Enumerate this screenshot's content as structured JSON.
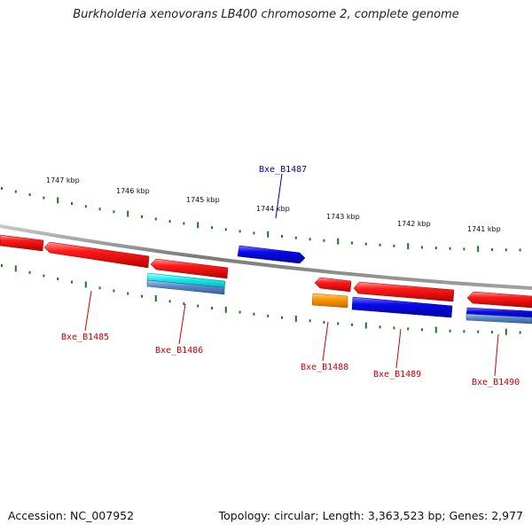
{
  "title": "Burkholderia xenovorans LB400 chromosome 2, complete genome",
  "footer": {
    "accession": "Accession: NC_007952",
    "summary": "Topology: circular; Length: 3,363,523 bp; Genes: 2,977"
  },
  "colors": {
    "backbone": "#8a8a8a",
    "tick": "#1a7a1a",
    "red_gene": "#ee0000",
    "blue_gene": "#0000dd",
    "cyan_gene": "#00e5e5",
    "orange_gene": "#ff9900",
    "steel_gene": "#4f7fbf",
    "red_label": "#cc0000",
    "blue_label": "#0000aa"
  },
  "ruler_labels": [
    "1747 kbp",
    "1746 kbp",
    "1745 kbp",
    "1744 kbp",
    "1743 kbp",
    "1742 kbp",
    "1741 kbp"
  ],
  "gene_labels": {
    "b1485": "Bxe_B1485",
    "b1486": "Bxe_B1486",
    "b1487": "Bxe_B1487",
    "b1488": "Bxe_B1488",
    "b1489": "Bxe_B1489",
    "b1490": "Bxe_B1490"
  }
}
